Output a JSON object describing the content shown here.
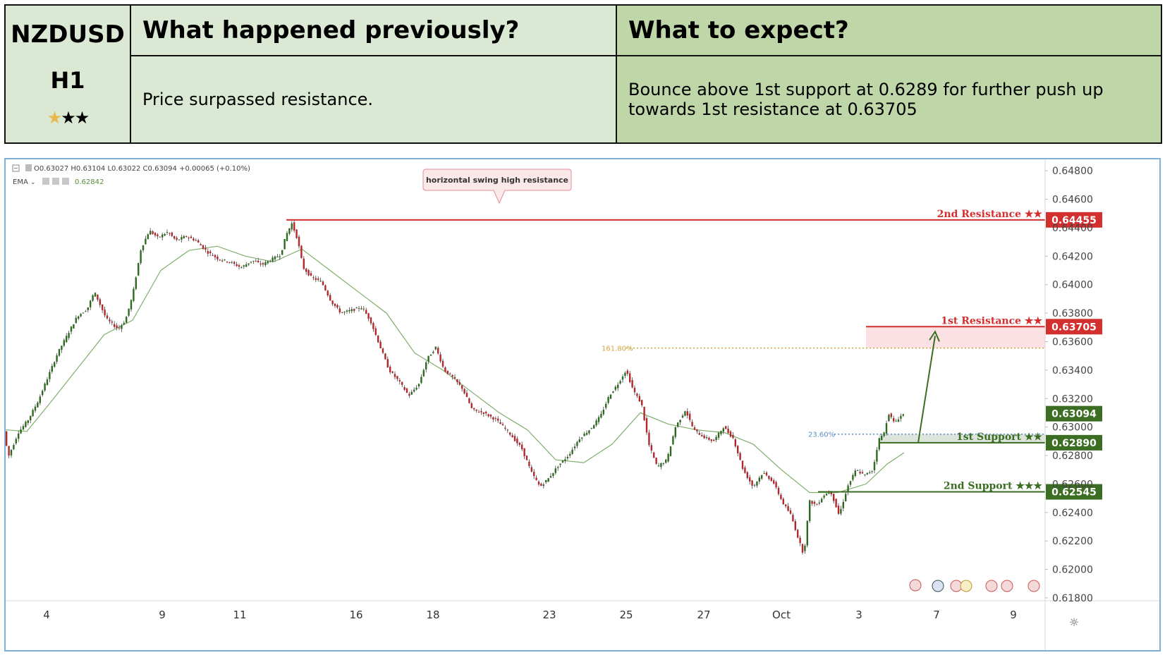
{
  "header": {
    "symbol": "NZDUSD",
    "timeframe": "H1",
    "stars": [
      "gold",
      "black",
      "black"
    ],
    "previous_title": "What happened previously?",
    "previous_text": "Price surpassed resistance.",
    "expect_title": "What to expect?",
    "expect_text": "Bounce above 1st support at 0.6289 for further push up towards 1st resistance at 0.63705"
  },
  "colors": {
    "resistance": "#d32f2f",
    "support": "#3b6e22",
    "ema": "#7fae6b",
    "fib161": "#d4a53a",
    "fib23": "#5a8ec6",
    "candle": "#2d6a1f",
    "candle_down": "#b2272b"
  },
  "chart_data": {
    "type": "candlestick",
    "ohlc_text": "O0.63027  H0.63104  L0.63022  C0.63094  +0.00065 (+0.10%)",
    "ema_label": "EMA",
    "ema_value": "0.62842",
    "callout": "horizontal swing high resistance",
    "x_ticks": [
      "4",
      "9",
      "11",
      "16",
      "18",
      "23",
      "25",
      "27",
      "Oct",
      "3",
      "7",
      "9"
    ],
    "y_ticks": [
      "0.61800",
      "0.62000",
      "0.62200",
      "0.62400",
      "0.62600",
      "0.62800",
      "0.63000",
      "0.63200",
      "0.63400",
      "0.63600",
      "0.63800",
      "0.64000",
      "0.64200",
      "0.64400",
      "0.64600",
      "0.64800"
    ],
    "ylim": [
      0.6178,
      0.6488
    ],
    "levels": [
      {
        "name": "2nd Resistance",
        "stars": "★★",
        "value": 0.64455,
        "label": "0.64455",
        "kind": "resistance"
      },
      {
        "name": "1st Resistance",
        "stars": "★★",
        "value": 0.63705,
        "label": "0.63705",
        "kind": "resistance"
      },
      {
        "name": "1st Support",
        "stars": "★★",
        "value": 0.6289,
        "label": "0.62890",
        "kind": "support"
      },
      {
        "name": "2nd Support",
        "stars": "★★★",
        "value": 0.62545,
        "label": "0.62545",
        "kind": "support"
      }
    ],
    "current_price": {
      "value": 0.63094,
      "label": "0.63094"
    },
    "fib_levels": [
      {
        "label": "161.80%",
        "value": 0.63555
      },
      {
        "label": "23.60%",
        "value": 0.6295
      }
    ],
    "price_path": [
      [
        0,
        0.6297
      ],
      [
        6,
        0.6279
      ],
      [
        20,
        0.6296
      ],
      [
        34,
        0.6305
      ],
      [
        48,
        0.6318
      ],
      [
        62,
        0.6335
      ],
      [
        76,
        0.6352
      ],
      [
        90,
        0.6365
      ],
      [
        104,
        0.6378
      ],
      [
        118,
        0.6383
      ],
      [
        128,
        0.6395
      ],
      [
        136,
        0.6386
      ],
      [
        145,
        0.6376
      ],
      [
        154,
        0.6372
      ],
      [
        162,
        0.6369
      ],
      [
        172,
        0.6375
      ],
      [
        182,
        0.6392
      ],
      [
        194,
        0.6425
      ],
      [
        206,
        0.6438
      ],
      [
        218,
        0.6433
      ],
      [
        232,
        0.6437
      ],
      [
        244,
        0.6431
      ],
      [
        258,
        0.6434
      ],
      [
        272,
        0.6431
      ],
      [
        288,
        0.6423
      ],
      [
        304,
        0.6418
      ],
      [
        320,
        0.6416
      ],
      [
        336,
        0.6412
      ],
      [
        352,
        0.6417
      ],
      [
        366,
        0.6414
      ],
      [
        380,
        0.6418
      ],
      [
        392,
        0.6421
      ],
      [
        400,
        0.6435
      ],
      [
        408,
        0.6443
      ],
      [
        416,
        0.6432
      ],
      [
        424,
        0.6412
      ],
      [
        436,
        0.6405
      ],
      [
        450,
        0.6402
      ],
      [
        464,
        0.6388
      ],
      [
        478,
        0.638
      ],
      [
        492,
        0.6382
      ],
      [
        508,
        0.6384
      ],
      [
        520,
        0.6374
      ],
      [
        532,
        0.6358
      ],
      [
        546,
        0.634
      ],
      [
        560,
        0.6332
      ],
      [
        574,
        0.6322
      ],
      [
        588,
        0.633
      ],
      [
        600,
        0.6348
      ],
      [
        612,
        0.6356
      ],
      [
        624,
        0.634
      ],
      [
        636,
        0.6335
      ],
      [
        650,
        0.6327
      ],
      [
        664,
        0.6312
      ],
      [
        680,
        0.631
      ],
      [
        698,
        0.6305
      ],
      [
        716,
        0.6296
      ],
      [
        734,
        0.6285
      ],
      [
        748,
        0.6268
      ],
      [
        760,
        0.6258
      ],
      [
        772,
        0.6264
      ],
      [
        786,
        0.6273
      ],
      [
        800,
        0.628
      ],
      [
        816,
        0.6292
      ],
      [
        832,
        0.6299
      ],
      [
        846,
        0.6308
      ],
      [
        858,
        0.6322
      ],
      [
        870,
        0.633
      ],
      [
        882,
        0.634
      ],
      [
        892,
        0.6326
      ],
      [
        904,
        0.6316
      ],
      [
        914,
        0.6288
      ],
      [
        926,
        0.6272
      ],
      [
        940,
        0.6277
      ],
      [
        952,
        0.63
      ],
      [
        966,
        0.6312
      ],
      [
        978,
        0.6298
      ],
      [
        992,
        0.6293
      ],
      [
        1006,
        0.629
      ],
      [
        1020,
        0.63
      ],
      [
        1034,
        0.6292
      ],
      [
        1048,
        0.627
      ],
      [
        1062,
        0.6258
      ],
      [
        1076,
        0.6268
      ],
      [
        1090,
        0.6262
      ],
      [
        1104,
        0.6247
      ],
      [
        1116,
        0.6238
      ],
      [
        1126,
        0.6222
      ],
      [
        1134,
        0.621
      ],
      [
        1142,
        0.6248
      ],
      [
        1152,
        0.6245
      ],
      [
        1162,
        0.6252
      ],
      [
        1172,
        0.6255
      ],
      [
        1184,
        0.6238
      ],
      [
        1196,
        0.6258
      ],
      [
        1208,
        0.627
      ],
      [
        1220,
        0.6266
      ],
      [
        1232,
        0.627
      ],
      [
        1240,
        0.6291
      ],
      [
        1248,
        0.6296
      ],
      [
        1254,
        0.631
      ],
      [
        1262,
        0.6303
      ],
      [
        1270,
        0.6307
      ],
      [
        1274,
        0.6309
      ]
    ],
    "ema_path": [
      [
        0,
        0.6298
      ],
      [
        30,
        0.6297
      ],
      [
        60,
        0.6315
      ],
      [
        100,
        0.634
      ],
      [
        140,
        0.6365
      ],
      [
        180,
        0.6375
      ],
      [
        220,
        0.641
      ],
      [
        260,
        0.6424
      ],
      [
        300,
        0.6427
      ],
      [
        340,
        0.642
      ],
      [
        380,
        0.6416
      ],
      [
        420,
        0.6425
      ],
      [
        460,
        0.641
      ],
      [
        500,
        0.6395
      ],
      [
        540,
        0.638
      ],
      [
        580,
        0.6352
      ],
      [
        620,
        0.634
      ],
      [
        660,
        0.6325
      ],
      [
        700,
        0.631
      ],
      [
        740,
        0.6298
      ],
      [
        780,
        0.6277
      ],
      [
        820,
        0.6275
      ],
      [
        860,
        0.6288
      ],
      [
        900,
        0.631
      ],
      [
        940,
        0.6302
      ],
      [
        980,
        0.6298
      ],
      [
        1020,
        0.6296
      ],
      [
        1060,
        0.6288
      ],
      [
        1100,
        0.627
      ],
      [
        1140,
        0.6254
      ],
      [
        1180,
        0.6254
      ],
      [
        1220,
        0.626
      ],
      [
        1250,
        0.6274
      ],
      [
        1274,
        0.6282
      ]
    ],
    "arrow": {
      "from_x": 1294,
      "from_value": 0.6289,
      "to_x": 1318,
      "to_value": 0.6367
    }
  }
}
